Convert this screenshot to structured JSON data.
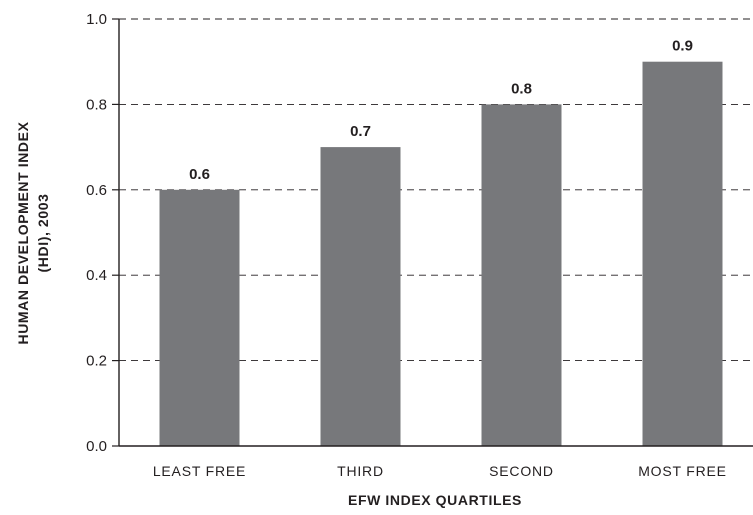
{
  "chart_data": {
    "type": "bar",
    "categories": [
      "LEAST FREE",
      "THIRD",
      "SECOND",
      "MOST FREE"
    ],
    "values": [
      0.6,
      0.7,
      0.8,
      0.9
    ],
    "data_labels": [
      "0.6",
      "0.7",
      "0.8",
      "0.9"
    ],
    "xlabel": "EFW INDEX QUARTILES",
    "ylabel_lines": [
      "HUMAN DEVELOPMENT INDEX",
      "(HDI), 2003"
    ],
    "ylim": [
      0,
      1.0
    ],
    "yticks": [
      "0.0",
      "0.2",
      "0.4",
      "0.6",
      "0.8",
      "1.0"
    ],
    "grid": "dashed-horizontal",
    "bar_color": "#77787b",
    "axis_color": "#231f20"
  }
}
